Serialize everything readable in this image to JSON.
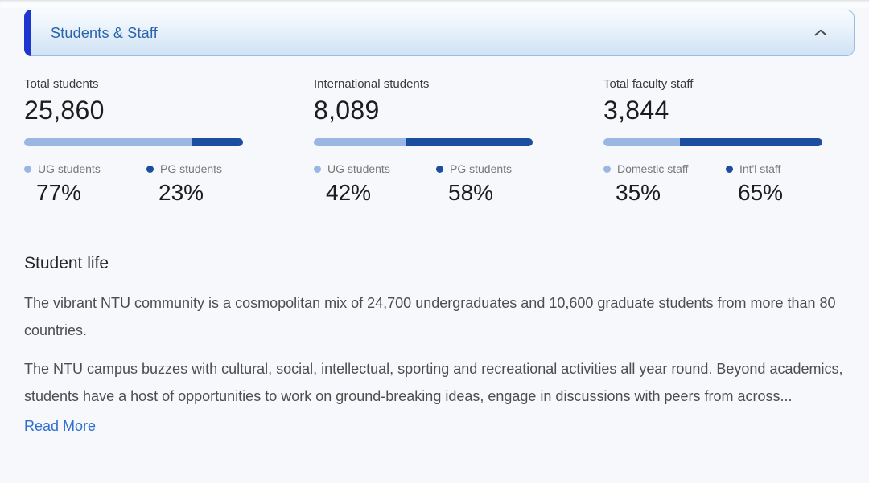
{
  "accordion": {
    "title": "Students & Staff",
    "state_icon": "chevron-up"
  },
  "stats": {
    "cards": [
      {
        "label": "Total students",
        "value": "25,860",
        "segments": [
          {
            "name": "UG students",
            "percent": 77,
            "percent_label": "77%",
            "color": "#9ab7e4"
          },
          {
            "name": "PG students",
            "percent": 23,
            "percent_label": "23%",
            "color": "#1c4d9e"
          }
        ]
      },
      {
        "label": "International students",
        "value": "8,089",
        "segments": [
          {
            "name": "UG students",
            "percent": 42,
            "percent_label": "42%",
            "color": "#9ab7e4"
          },
          {
            "name": "PG students",
            "percent": 58,
            "percent_label": "58%",
            "color": "#1c4d9e"
          }
        ]
      },
      {
        "label": "Total faculty staff",
        "value": "3,844",
        "segments": [
          {
            "name": "Domestic staff",
            "percent": 35,
            "percent_label": "35%",
            "color": "#9ab7e4"
          },
          {
            "name": "Int'l staff",
            "percent": 65,
            "percent_label": "65%",
            "color": "#1c4d9e"
          }
        ]
      }
    ]
  },
  "student_life": {
    "heading": "Student life",
    "paragraphs": [
      "The vibrant NTU community is a cosmopolitan mix of 24,700 undergraduates and 10,600 graduate students from more than 80 countries.",
      "The NTU campus buzzes with cultural, social, intellectual, sporting and recreational activities all year round. Beyond academics, students have a host of opportunities to work on ground-breaking ideas, engage in discussions with peers from across..."
    ],
    "read_more_label": "Read More"
  },
  "colors": {
    "accent_border": "#1d36cf",
    "header_title": "#2a63a8",
    "bar_light": "#9ab7e4",
    "bar_dark": "#1c4d9e",
    "link": "#2e6fce"
  }
}
